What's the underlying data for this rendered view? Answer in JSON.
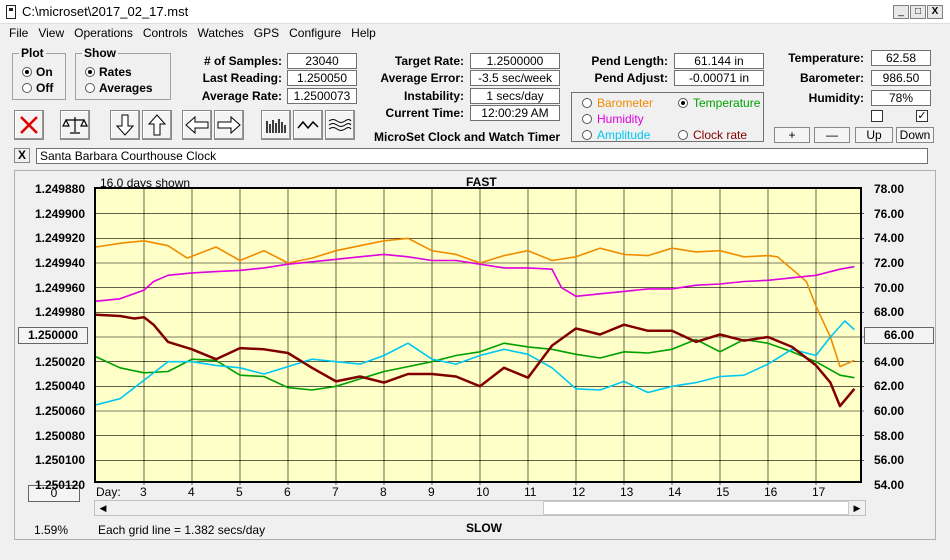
{
  "window": {
    "title": "C:\\microset\\2017_02_17.mst",
    "min": "_",
    "max": "□",
    "close": "X"
  },
  "menu": [
    "File",
    "View",
    "Operations",
    "Controls",
    "Watches",
    "GPS",
    "Configure",
    "Help"
  ],
  "plot_group": {
    "title": "Plot",
    "options": [
      "On",
      "Off"
    ],
    "selected": 0
  },
  "show_group": {
    "title": "Show",
    "options": [
      "Rates",
      "Averages"
    ],
    "selected": 0
  },
  "stats": [
    {
      "label": "# of Samples:",
      "value": "23040"
    },
    {
      "label": "Last Reading:",
      "value": "1.250050"
    },
    {
      "label": "Average Rate:",
      "value": "1.2500073"
    }
  ],
  "rates": [
    {
      "label": "Target Rate:",
      "value": "1.2500000"
    },
    {
      "label": "Average Error:",
      "value": "-3.5 sec/week"
    },
    {
      "label": "Instability:",
      "value": "1 secs/day"
    },
    {
      "label": "Current Time:",
      "value": "12:00:29 AM"
    }
  ],
  "subtitle": "MicroSet Clock and Watch Timer",
  "pend": [
    {
      "label": "Pend Length:",
      "value": "61.144 in"
    },
    {
      "label": "Pend Adjust:",
      "value": "-0.00071 in"
    }
  ],
  "env": [
    {
      "label": "Temperature:",
      "value": "62.58"
    },
    {
      "label": "Barometer:",
      "value": "986.50"
    },
    {
      "label": "Humidity:",
      "value": "78%"
    }
  ],
  "env_checks": [
    false,
    true
  ],
  "param_options": [
    {
      "label": "Barometer",
      "color": "#f08c00",
      "selected": false
    },
    {
      "label": "Temperature",
      "color": "#00a000",
      "selected": true
    },
    {
      "label": "Humidity",
      "color": "#e000e0",
      "selected": false
    },
    {
      "label": "Amplitude",
      "color": "#00c8f0",
      "selected": false
    },
    {
      "label": "Clock rate",
      "color": "#800000",
      "selected": false
    }
  ],
  "scale_buttons": [
    "+",
    "—",
    "Up",
    "Down"
  ],
  "clock_name": "Santa Barbara Courthouse Clock",
  "clear_btn": "X",
  "chart_header": {
    "days_shown": "16.0 days shown",
    "fast": "FAST",
    "slow": "SLOW",
    "grid_note": "Each grid line = 1.382 secs/day",
    "percent": "1.59%",
    "left_btn": "1.250000",
    "right_btn": "66.00",
    "zero_btn": "0",
    "day_label": "Day:"
  },
  "chart_data": {
    "type": "line",
    "left_axis_ticks": [
      "1.249880",
      "1.249900",
      "1.249920",
      "1.249940",
      "1.249960",
      "1.249980",
      "1.250000",
      "1.250020",
      "1.250040",
      "1.250060",
      "1.250080",
      "1.250100",
      "1.250120"
    ],
    "right_axis_ticks": [
      "78.00",
      "76.00",
      "74.00",
      "72.00",
      "70.00",
      "68.00",
      "66.00",
      "64.00",
      "62.00",
      "60.00",
      "58.00",
      "56.00",
      "54.00"
    ],
    "x_ticks": [
      "3",
      "4",
      "5",
      "6",
      "7",
      "8",
      "9",
      "10",
      "11",
      "12",
      "13",
      "14",
      "15",
      "16",
      "17"
    ],
    "x_range": [
      2,
      18
    ],
    "right_range": [
      54,
      78
    ],
    "left_range": [
      1.24988,
      1.25012
    ],
    "series": [
      {
        "name": "Barometer",
        "color": "#f08c00",
        "axis": "right",
        "x": [
          2.0,
          2.5,
          3.0,
          3.5,
          3.9,
          4.5,
          5.0,
          5.5,
          6.0,
          6.5,
          7.0,
          7.5,
          8.0,
          8.5,
          9.0,
          9.5,
          10.0,
          10.5,
          11.0,
          11.5,
          12.0,
          12.5,
          13.0,
          13.5,
          14.0,
          14.5,
          15.0,
          15.5,
          16.0,
          16.2,
          16.5,
          16.8,
          17.0,
          17.3,
          17.5,
          17.8
        ],
        "y": [
          73.3,
          73.6,
          73.8,
          73.4,
          72.4,
          73.3,
          72.2,
          73.0,
          72.0,
          72.4,
          73.0,
          73.4,
          73.8,
          74.0,
          73.0,
          72.7,
          72.0,
          72.6,
          73.0,
          72.2,
          72.5,
          73.2,
          72.7,
          72.6,
          73.2,
          72.9,
          73.0,
          72.5,
          72.6,
          72.5,
          71.5,
          70.5,
          68.5,
          66.0,
          63.6,
          64.1
        ]
      },
      {
        "name": "Humidity",
        "color": "#e000e0",
        "axis": "left",
        "x": [
          2.0,
          2.5,
          3.0,
          3.2,
          3.5,
          4.0,
          4.5,
          5.0,
          5.5,
          6.0,
          6.5,
          7.0,
          7.5,
          8.0,
          8.5,
          9.0,
          9.5,
          10.0,
          10.5,
          11.0,
          11.5,
          11.7,
          12.0,
          12.5,
          13.0,
          13.5,
          14.0,
          14.5,
          15.0,
          15.5,
          16.0,
          16.5,
          17.0,
          17.5,
          17.8
        ],
        "y": [
          1.249971,
          1.249969,
          1.249962,
          1.249955,
          1.24995,
          1.249948,
          1.249947,
          1.249946,
          1.249944,
          1.249941,
          1.249939,
          1.249937,
          1.249935,
          1.249933,
          1.249935,
          1.249938,
          1.249938,
          1.249941,
          1.249944,
          1.249944,
          1.249945,
          1.24996,
          1.249967,
          1.249965,
          1.249963,
          1.249961,
          1.249961,
          1.249958,
          1.249957,
          1.249955,
          1.249954,
          1.249952,
          1.24995,
          1.249945,
          1.249943
        ]
      },
      {
        "name": "Temperature",
        "color": "#00a000",
        "axis": "right",
        "x": [
          2.0,
          2.5,
          3.0,
          3.5,
          4.0,
          4.5,
          5.0,
          5.5,
          6.0,
          6.5,
          7.0,
          7.5,
          8.0,
          8.5,
          9.0,
          9.5,
          10.0,
          10.5,
          11.0,
          11.5,
          12.0,
          12.5,
          13.0,
          13.5,
          14.0,
          14.5,
          15.0,
          15.5,
          16.0,
          16.5,
          17.0,
          17.5,
          17.8
        ],
        "y": [
          64.4,
          63.5,
          63.1,
          63.2,
          64.2,
          64.1,
          62.9,
          62.8,
          61.9,
          61.7,
          62.0,
          62.6,
          63.2,
          63.6,
          64.0,
          64.5,
          64.8,
          65.5,
          65.2,
          65.0,
          64.6,
          64.3,
          64.8,
          64.7,
          65.0,
          65.8,
          64.8,
          65.8,
          65.5,
          64.8,
          64.0,
          62.9,
          62.7
        ]
      },
      {
        "name": "Amplitude",
        "color": "#00c8f0",
        "axis": "right",
        "x": [
          2.0,
          2.5,
          3.0,
          3.5,
          4.0,
          4.5,
          5.0,
          5.5,
          6.0,
          6.5,
          7.0,
          7.5,
          8.0,
          8.5,
          9.0,
          9.5,
          10.0,
          10.5,
          11.0,
          11.5,
          12.0,
          12.5,
          13.0,
          13.5,
          14.0,
          14.5,
          15.0,
          15.5,
          16.0,
          16.5,
          17.0,
          17.3,
          17.6,
          17.8
        ],
        "y": [
          60.5,
          61.0,
          62.5,
          64.0,
          64.0,
          63.7,
          63.5,
          63.0,
          63.6,
          64.2,
          64.0,
          63.8,
          64.5,
          65.5,
          64.2,
          63.8,
          64.5,
          65.0,
          64.6,
          63.5,
          61.8,
          61.7,
          62.4,
          61.5,
          62.0,
          62.3,
          62.8,
          62.9,
          63.8,
          65.0,
          64.5,
          66.0,
          67.3,
          66.6
        ]
      },
      {
        "name": "Clock rate",
        "color": "#800000",
        "axis": "left",
        "x": [
          2.0,
          2.5,
          2.8,
          3.0,
          3.2,
          3.5,
          4.0,
          4.5,
          5.0,
          5.5,
          6.0,
          6.5,
          7.0,
          7.5,
          8.0,
          8.5,
          9.0,
          9.5,
          10.0,
          10.5,
          11.0,
          11.5,
          12.0,
          12.5,
          13.0,
          13.5,
          14.0,
          14.5,
          15.0,
          15.5,
          16.0,
          16.5,
          17.0,
          17.3,
          17.5,
          17.8
        ],
        "y": [
          1.249982,
          1.249983,
          1.249985,
          1.249984,
          1.24999,
          1.250004,
          1.25001,
          1.250018,
          1.250009,
          1.25001,
          1.250013,
          1.250025,
          1.250036,
          1.250032,
          1.250037,
          1.25003,
          1.25003,
          1.250032,
          1.25004,
          1.250025,
          1.250033,
          1.250007,
          1.249993,
          1.249998,
          1.24999,
          1.249995,
          1.249995,
          1.250004,
          1.249998,
          1.250003,
          1.25,
          1.250008,
          1.250023,
          1.250037,
          1.250056,
          1.250042
        ]
      }
    ]
  }
}
